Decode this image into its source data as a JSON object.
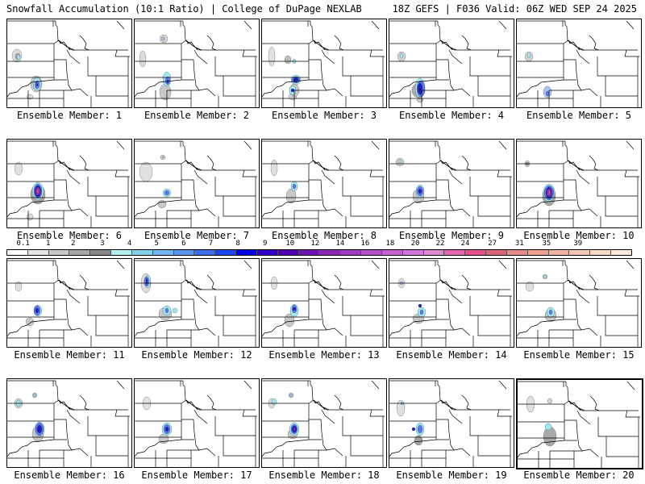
{
  "header": {
    "title": "Snowfall Accumulation (10:1 Ratio) | College of DuPage NEXLAB",
    "run_info": "18Z GEFS | F036 Valid: 06Z WED SEP 24 2025"
  },
  "legend": {
    "labels": [
      "0.1",
      "1",
      "2",
      "3",
      "4",
      "5",
      "6",
      "7",
      "8",
      "9",
      "10",
      "12",
      "14",
      "16",
      "18",
      "20",
      "22",
      "24",
      "27",
      "31",
      "35",
      "39"
    ],
    "colors": [
      "#ffffff",
      "#e6e6e6",
      "#c8c8c8",
      "#a8a8a8",
      "#888888",
      "#b4f0f0",
      "#82d2e8",
      "#78b4f0",
      "#5a96f0",
      "#3c6ef0",
      "#1e46f0",
      "#0000f0",
      "#3200c8",
      "#5000b4",
      "#6e14b4",
      "#8c28b4",
      "#a03cbe",
      "#b450c8",
      "#c864d2",
      "#d278dc",
      "#dc8cd2",
      "#e664b4",
      "#e6508c",
      "#dc6478",
      "#e68c8c",
      "#f0a08c",
      "#f0b4a0",
      "#f5c8b4",
      "#f8dcc8",
      "#fcece0"
    ]
  },
  "members": [
    {
      "label": "Ensemble Member: 1",
      "blobs": [
        [
          "#dcdcdc",
          12,
          45,
          6,
          8
        ],
        [
          "#aaaaaa",
          13,
          46,
          3,
          4
        ],
        [
          "#a0e8f0",
          14,
          47,
          2,
          3
        ],
        [
          "#dcdcdc",
          28,
          96,
          4,
          3
        ],
        [
          "#c8c8c8",
          36,
          80,
          7,
          10
        ],
        [
          "#a0e8f0",
          37,
          80,
          5,
          8
        ],
        [
          "#5a78f0",
          37,
          81,
          3,
          5
        ],
        [
          "#1e1ec8",
          37,
          81,
          1,
          2
        ]
      ]
    },
    {
      "label": "Ensemble Member: 2",
      "blobs": [
        [
          "#d2d2d2",
          36,
          24,
          5,
          5
        ],
        [
          "#a8c8f0",
          35,
          24,
          2,
          2
        ],
        [
          "#dcdcdc",
          10,
          49,
          4,
          10
        ],
        [
          "#c8c8c8",
          38,
          90,
          7,
          10
        ],
        [
          "#a0e8f0",
          40,
          74,
          5,
          9
        ],
        [
          "#5a78f0",
          41,
          76,
          3,
          5
        ],
        [
          "#1e1ec8",
          41,
          77,
          1,
          2
        ]
      ]
    },
    {
      "label": "Ensemble Member: 3",
      "blobs": [
        [
          "#e0e0e0",
          12,
          46,
          4,
          12
        ],
        [
          "#bcbcbc",
          32,
          50,
          4,
          5
        ],
        [
          "#a0e8f0",
          40,
          52,
          2,
          3
        ],
        [
          "#dcdcdc",
          38,
          96,
          5,
          4
        ],
        [
          "#c8c8c8",
          40,
          88,
          6,
          8
        ],
        [
          "#a0e8f0",
          42,
          75,
          6,
          6
        ],
        [
          "#5a78f0",
          42,
          75,
          5,
          4
        ],
        [
          "#1e1ec8",
          42,
          75,
          3,
          3
        ],
        [
          "#a0e8f0",
          38,
          88,
          4,
          6
        ],
        [
          "#1e1ec8",
          38,
          88,
          2,
          2
        ]
      ]
    },
    {
      "label": "Ensemble Member: 4",
      "blobs": [
        [
          "#d2d2d2",
          15,
          46,
          5,
          6
        ],
        [
          "#a0e8f0",
          15,
          45,
          2,
          3
        ],
        [
          "#c8c8c8",
          38,
          100,
          4,
          3
        ],
        [
          "#aaaaaa",
          36,
          88,
          8,
          9
        ],
        [
          "#a0e8f0",
          38,
          85,
          6,
          12
        ],
        [
          "#5a78f0",
          39,
          86,
          5,
          10
        ],
        [
          "#1e1ec8",
          38,
          86,
          3,
          7
        ],
        [
          "#1e0078",
          38,
          87,
          1,
          2
        ]
      ]
    },
    {
      "label": "Ensemble Member: 5",
      "blobs": [
        [
          "#d2d2d2",
          15,
          46,
          5,
          6
        ],
        [
          "#a0e8f0",
          15,
          45,
          2,
          3
        ],
        [
          "#a8c8f0",
          38,
          90,
          5,
          7
        ],
        [
          "#5a78f0",
          38,
          92,
          2,
          3
        ]
      ]
    },
    {
      "label": "Ensemble Member: 6",
      "blobs": [
        [
          "#e0e0e0",
          14,
          36,
          5,
          8
        ],
        [
          "#dcdcdc",
          28,
          96,
          4,
          4
        ],
        [
          "#aaaaaa",
          38,
          68,
          9,
          12
        ],
        [
          "#a0e8f0",
          38,
          64,
          7,
          11
        ],
        [
          "#5a78f0",
          38,
          64,
          5,
          9
        ],
        [
          "#1e1ec8",
          38,
          64,
          4,
          7
        ],
        [
          "#8c28b4",
          38,
          64,
          3,
          5
        ],
        [
          "#e650a0",
          38,
          64,
          1,
          3
        ]
      ]
    },
    {
      "label": "Ensemble Member: 7",
      "blobs": [
        [
          "#e0e0e0",
          14,
          40,
          8,
          12
        ],
        [
          "#d2d2d2",
          35,
          22,
          3,
          3
        ],
        [
          "#a8c8f0",
          35,
          22,
          1,
          1
        ],
        [
          "#c8c8c8",
          34,
          80,
          5,
          5
        ],
        [
          "#a0e8f0",
          40,
          66,
          5,
          5
        ],
        [
          "#5a78f0",
          40,
          66,
          3,
          3
        ]
      ]
    },
    {
      "label": "Ensemble Member: 8",
      "blobs": [
        [
          "#e0e0e0",
          15,
          35,
          4,
          10
        ],
        [
          "#c8c8c8",
          36,
          70,
          6,
          9
        ],
        [
          "#a0e8f0",
          40,
          58,
          4,
          6
        ],
        [
          "#5a78f0",
          40,
          58,
          2,
          3
        ]
      ]
    },
    {
      "label": "Ensemble Member: 9",
      "blobs": [
        [
          "#d2d2d2",
          13,
          28,
          5,
          5
        ],
        [
          "#a0e8f0",
          13,
          27,
          2,
          2
        ],
        [
          "#c8c8c8",
          36,
          70,
          7,
          9
        ],
        [
          "#a0e8f0",
          38,
          64,
          5,
          8
        ],
        [
          "#5a78f0",
          38,
          64,
          4,
          6
        ],
        [
          "#1e1ec8",
          38,
          64,
          2,
          3
        ]
      ]
    },
    {
      "label": "Ensemble Member: 10",
      "blobs": [
        [
          "#d2d2d2",
          13,
          30,
          3,
          4
        ],
        [
          "#a0a0a0",
          13,
          30,
          2,
          2
        ],
        [
          "#aaaaaa",
          40,
          70,
          8,
          12
        ],
        [
          "#a0e8f0",
          40,
          66,
          7,
          11
        ],
        [
          "#5a78f0",
          40,
          66,
          6,
          9
        ],
        [
          "#1e1ec8",
          40,
          66,
          4,
          7
        ],
        [
          "#8c28b4",
          40,
          66,
          3,
          5
        ],
        [
          "#e650a0",
          40,
          66,
          1,
          3
        ]
      ]
    },
    {
      "label": "Ensemble Member: 11",
      "blobs": [
        [
          "#e0e0e0",
          14,
          34,
          4,
          6
        ],
        [
          "#c8c8c8",
          28,
          78,
          5,
          5
        ],
        [
          "#a0e8f0",
          38,
          64,
          5,
          7
        ],
        [
          "#5a78f0",
          37,
          64,
          4,
          6
        ],
        [
          "#1e1ec8",
          37,
          64,
          2,
          3
        ]
      ]
    },
    {
      "label": "Ensemble Member: 12",
      "blobs": [
        [
          "#dcdcdc",
          14,
          30,
          6,
          12
        ],
        [
          "#a0e8f0",
          16,
          28,
          4,
          8
        ],
        [
          "#5a78f0",
          15,
          28,
          3,
          6
        ],
        [
          "#1e1ec8",
          15,
          28,
          1,
          4
        ],
        [
          "#c8c8c8",
          38,
          68,
          8,
          8
        ],
        [
          "#a0e8f0",
          40,
          64,
          5,
          6
        ],
        [
          "#5a78f0",
          40,
          64,
          2,
          3
        ],
        [
          "#a0e8f0",
          50,
          64,
          3,
          3
        ]
      ]
    },
    {
      "label": "Ensemble Member: 13",
      "blobs": [
        [
          "#e0e0e0",
          15,
          30,
          4,
          8
        ],
        [
          "#c8c8c8",
          34,
          76,
          6,
          8
        ],
        [
          "#a0e8f0",
          40,
          64,
          5,
          8
        ],
        [
          "#5a78f0",
          40,
          62,
          3,
          5
        ],
        [
          "#1e1ec8",
          40,
          62,
          2,
          2
        ]
      ]
    },
    {
      "label": "Ensemble Member: 14",
      "blobs": [
        [
          "#e0e0e0",
          15,
          30,
          4,
          6
        ],
        [
          "#a8c8f0",
          15,
          30,
          2,
          2
        ],
        [
          "#1e1ec8",
          38,
          58,
          2,
          2
        ],
        [
          "#c8c8c8",
          36,
          74,
          7,
          6
        ],
        [
          "#a0e8f0",
          40,
          66,
          5,
          6
        ],
        [
          "#5a78f0",
          40,
          66,
          2,
          3
        ]
      ]
    },
    {
      "label": "Ensemble Member: 15",
      "blobs": [
        [
          "#e0e0e0",
          16,
          34,
          5,
          6
        ],
        [
          "#d2d2d2",
          35,
          22,
          3,
          3
        ],
        [
          "#a0e8f0",
          35,
          22,
          2,
          2
        ],
        [
          "#c8c8c8",
          42,
          70,
          7,
          8
        ],
        [
          "#a0e8f0",
          42,
          66,
          5,
          6
        ],
        [
          "#5a78f0",
          42,
          66,
          2,
          3
        ]
      ]
    },
    {
      "label": "Ensemble Member: 16",
      "blobs": [
        [
          "#d2d2d2",
          14,
          30,
          5,
          6
        ],
        [
          "#a0e8f0",
          14,
          30,
          3,
          4
        ],
        [
          "#d2d2d2",
          34,
          20,
          3,
          3
        ],
        [
          "#a8c8f0",
          34,
          20,
          2,
          2
        ],
        [
          "#c8c8c8",
          38,
          68,
          7,
          10
        ],
        [
          "#a0e8f0",
          40,
          62,
          6,
          9
        ],
        [
          "#5a78f0",
          40,
          62,
          5,
          8
        ],
        [
          "#1e1ec8",
          40,
          62,
          3,
          5
        ]
      ]
    },
    {
      "label": "Ensemble Member: 17",
      "blobs": [
        [
          "#e0e0e0",
          15,
          30,
          5,
          8
        ],
        [
          "#c8c8c8",
          36,
          74,
          6,
          6
        ],
        [
          "#a0e8f0",
          40,
          62,
          6,
          8
        ],
        [
          "#5a78f0",
          40,
          62,
          4,
          6
        ],
        [
          "#1e1ec8",
          40,
          62,
          2,
          3
        ]
      ]
    },
    {
      "label": "Ensemble Member: 18",
      "blobs": [
        [
          "#dcdcdc",
          12,
          30,
          4,
          6
        ],
        [
          "#a0e8f0",
          15,
          28,
          3,
          4
        ],
        [
          "#d2d2d2",
          36,
          20,
          3,
          3
        ],
        [
          "#a8c8f0",
          36,
          20,
          2,
          2
        ],
        [
          "#c8c8c8",
          38,
          68,
          6,
          6
        ],
        [
          "#a0e8f0",
          40,
          62,
          6,
          8
        ],
        [
          "#5a78f0",
          40,
          62,
          4,
          6
        ],
        [
          "#1e1ec8",
          40,
          62,
          3,
          4
        ],
        [
          "#8c28b4",
          40,
          62,
          1,
          2
        ]
      ]
    },
    {
      "label": "Ensemble Member: 19",
      "blobs": [
        [
          "#e0e0e0",
          14,
          36,
          5,
          10
        ],
        [
          "#a8c8f0",
          16,
          30,
          2,
          2
        ],
        [
          "#a0a0a0",
          36,
          76,
          5,
          6
        ],
        [
          "#a0e8f0",
          38,
          62,
          5,
          8
        ],
        [
          "#5a78f0",
          38,
          62,
          3,
          5
        ],
        [
          "#1e1ec8",
          30,
          62,
          2,
          2
        ]
      ]
    },
    {
      "label": "Ensemble Member: 20",
      "blobs": [
        [
          "#e0e0e0",
          16,
          30,
          5,
          10
        ],
        [
          "#d2d2d2",
          40,
          26,
          3,
          3
        ],
        [
          "#aaaaaa",
          40,
          70,
          8,
          12
        ],
        [
          "#a0e8f0",
          38,
          58,
          4,
          4
        ]
      ]
    }
  ]
}
